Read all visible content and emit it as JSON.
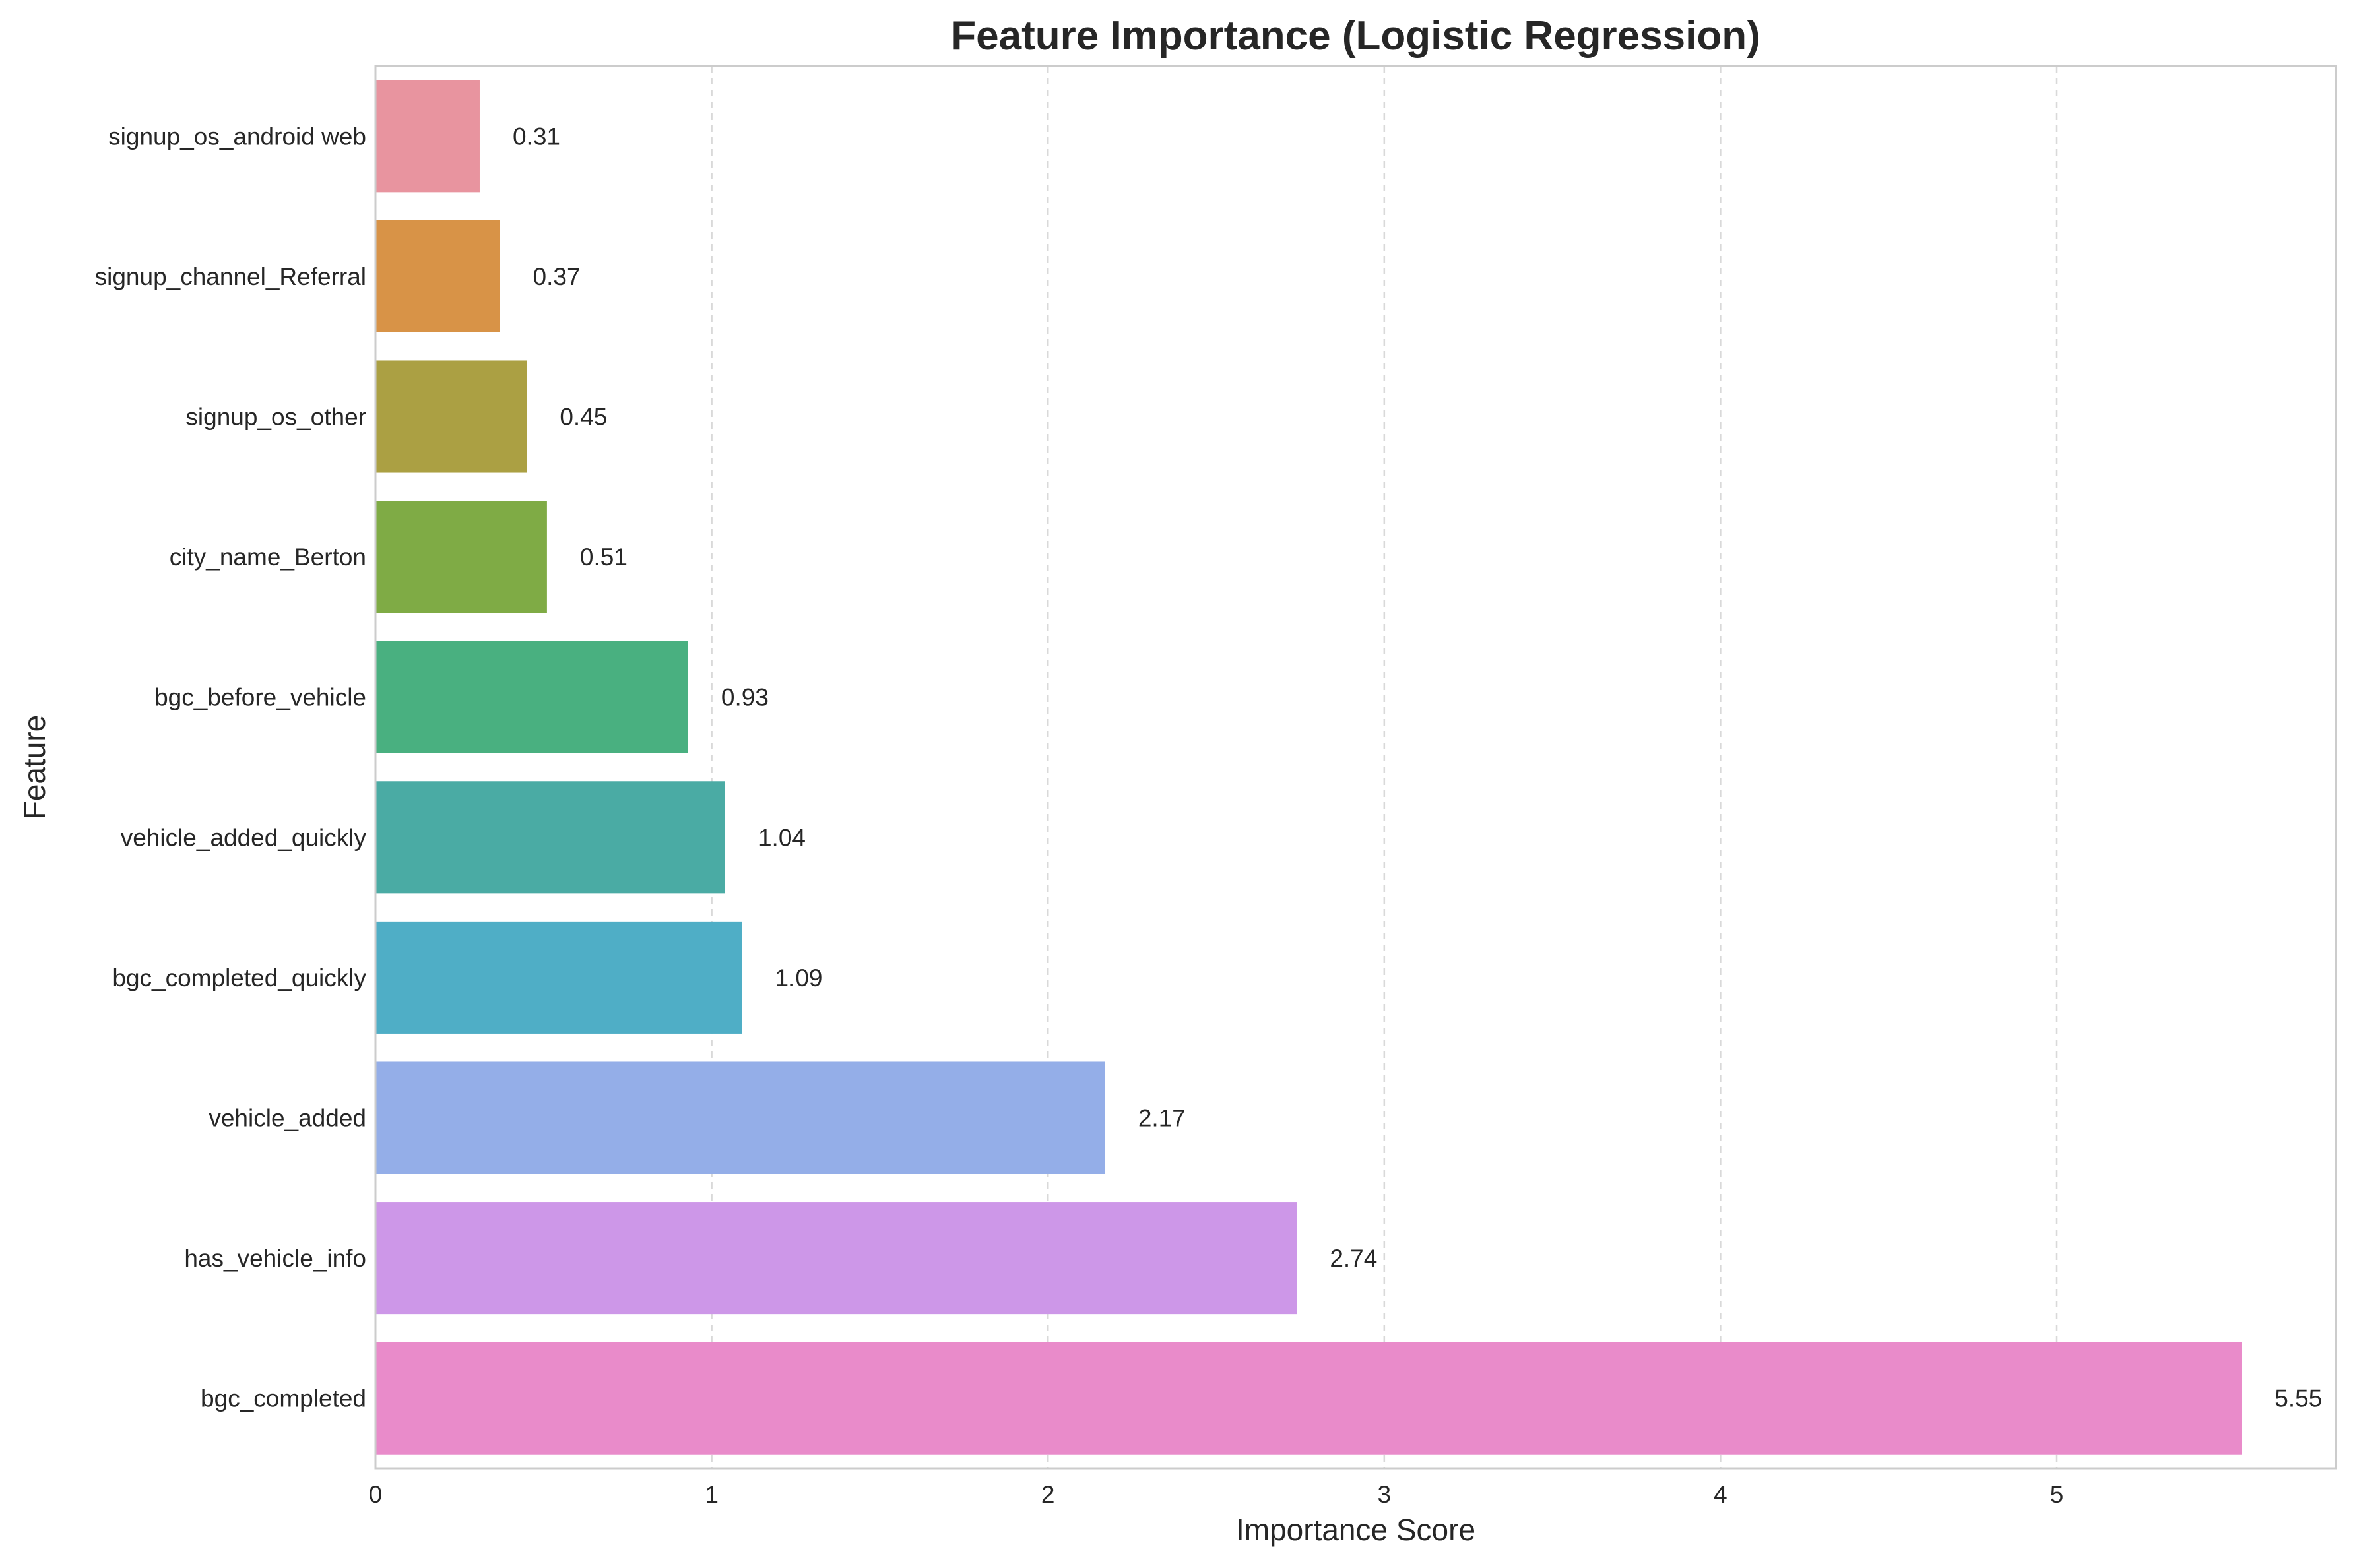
{
  "chart_data": {
    "type": "bar",
    "orientation": "horizontal",
    "title": "Feature Importance (Logistic Regression)",
    "xlabel": "Importance Score",
    "ylabel": "Feature",
    "xlim": [
      0,
      5.83
    ],
    "xticks": [
      0,
      1,
      2,
      3,
      4,
      5
    ],
    "xtick_labels": [
      "0",
      "1",
      "2",
      "3",
      "4",
      "5"
    ],
    "grid": "vertical dashed",
    "categories": [
      "signup_os_android web",
      "signup_channel_Referral",
      "signup_os_other",
      "city_name_Berton",
      "bgc_before_vehicle",
      "vehicle_added_quickly",
      "bgc_completed_quickly",
      "vehicle_added",
      "has_vehicle_info",
      "bgc_completed"
    ],
    "values": [
      0.31,
      0.37,
      0.45,
      0.51,
      0.93,
      1.04,
      1.09,
      2.17,
      2.74,
      5.55
    ],
    "value_labels": [
      "0.31",
      "0.37",
      "0.45",
      "0.51",
      "0.93",
      "1.04",
      "1.09",
      "2.17",
      "2.74",
      "5.55"
    ],
    "colors": [
      "#e8949f",
      "#d89347",
      "#aba043",
      "#7fab45",
      "#49b080",
      "#4aaba4",
      "#4faec6",
      "#94aee8",
      "#cd97e8",
      "#e98bca"
    ]
  }
}
